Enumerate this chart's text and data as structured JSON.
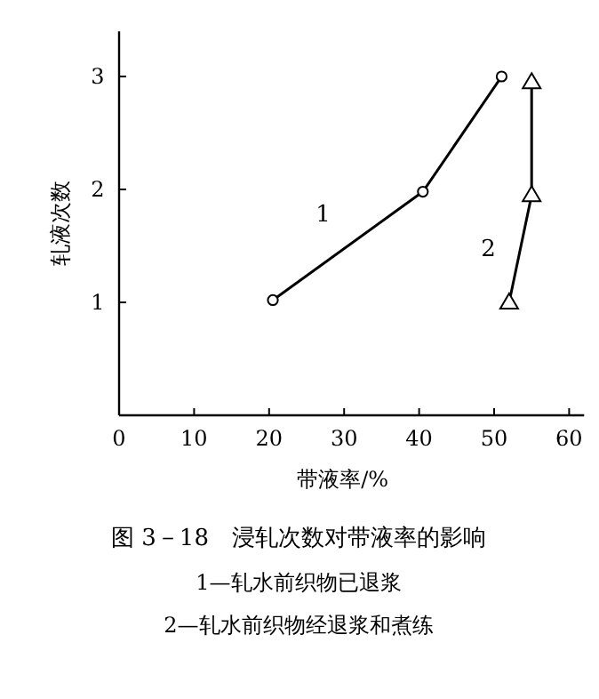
{
  "chart_data": {
    "type": "line",
    "title": "图 3－18　浸轧次数对带液率的影响",
    "xlabel": "带液率/%",
    "ylabel": "轧液次数",
    "annotations": [
      "1—轧水前织物已退浆",
      "2—轧水前织物经退浆和煮练"
    ],
    "xlim": [
      0,
      62
    ],
    "ylim": [
      0,
      3.4
    ],
    "xticks": [
      0,
      10,
      20,
      30,
      40,
      50,
      60
    ],
    "yticks": [
      1,
      2,
      3
    ],
    "grid": false,
    "series": [
      {
        "name": "1",
        "color": "#000000",
        "marker": "circle",
        "x": [
          20.5,
          40.5,
          51
        ],
        "values": [
          1.02,
          1.98,
          3
        ]
      },
      {
        "name": "2",
        "color": "#000000",
        "marker": "triangle",
        "x": [
          52,
          55,
          55
        ],
        "values": [
          1,
          1.95,
          2.95
        ]
      }
    ]
  }
}
